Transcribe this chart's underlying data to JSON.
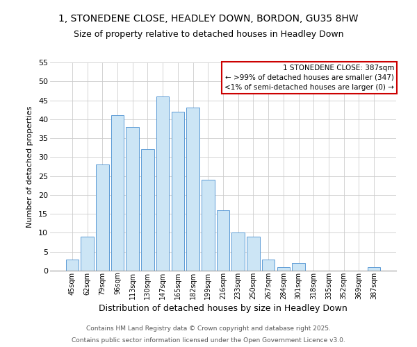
{
  "title": "1, STONEDENE CLOSE, HEADLEY DOWN, BORDON, GU35 8HW",
  "subtitle": "Size of property relative to detached houses in Headley Down",
  "xlabel": "Distribution of detached houses by size in Headley Down",
  "ylabel": "Number of detached properties",
  "bar_color": "#cce5f5",
  "bar_edge_color": "#5b9bd5",
  "categories": [
    "45sqm",
    "62sqm",
    "79sqm",
    "96sqm",
    "113sqm",
    "130sqm",
    "147sqm",
    "165sqm",
    "182sqm",
    "199sqm",
    "216sqm",
    "233sqm",
    "250sqm",
    "267sqm",
    "284sqm",
    "301sqm",
    "318sqm",
    "335sqm",
    "352sqm",
    "369sqm",
    "387sqm"
  ],
  "values": [
    3,
    9,
    28,
    41,
    38,
    32,
    46,
    42,
    43,
    24,
    16,
    10,
    9,
    3,
    1,
    2,
    0,
    0,
    0,
    0,
    1
  ],
  "ylim": [
    0,
    55
  ],
  "yticks": [
    0,
    5,
    10,
    15,
    20,
    25,
    30,
    35,
    40,
    45,
    50,
    55
  ],
  "annotation_box_text": "1 STONEDENE CLOSE: 387sqm\n← >99% of detached houses are smaller (347)\n<1% of semi-detached houses are larger (0) →",
  "annotation_box_color": "#cc0000",
  "footer_line1": "Contains HM Land Registry data © Crown copyright and database right 2025.",
  "footer_line2": "Contains public sector information licensed under the Open Government Licence v3.0.",
  "bg_color": "#ffffff",
  "grid_color": "#cccccc",
  "title_fontsize": 10,
  "subtitle_fontsize": 9,
  "xlabel_fontsize": 9,
  "ylabel_fontsize": 8,
  "xtick_fontsize": 7,
  "ytick_fontsize": 8,
  "annot_fontsize": 7.5,
  "footer_fontsize": 6.5
}
